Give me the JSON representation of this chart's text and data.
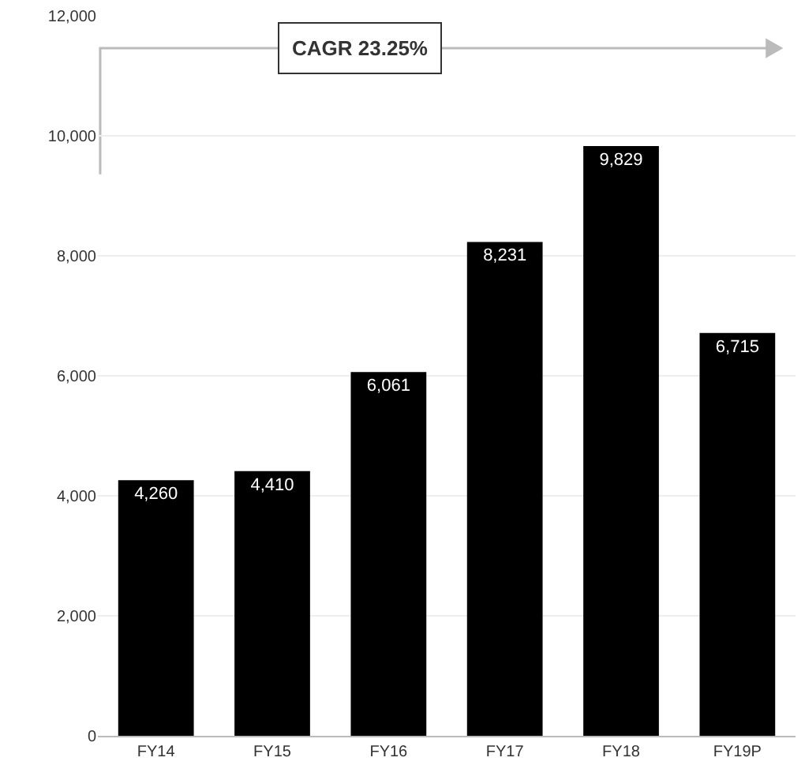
{
  "chart_data": {
    "type": "bar",
    "categories": [
      "FY14",
      "FY15",
      "FY16",
      "FY17",
      "FY18",
      "FY19P"
    ],
    "values": [
      4260,
      4410,
      6061,
      8231,
      9829,
      6715
    ],
    "value_labels": [
      "4,260",
      "4,410",
      "6,061",
      "8,231",
      "9,829",
      "6,715"
    ],
    "color": "#000000",
    "ylim": [
      0,
      12000
    ],
    "yticks": [
      {
        "value": 0,
        "label": "0"
      },
      {
        "value": 2000,
        "label": "2,000"
      },
      {
        "value": 4000,
        "label": "4,000"
      },
      {
        "value": 6000,
        "label": "6,000"
      },
      {
        "value": 8000,
        "label": "8,000"
      },
      {
        "value": 10000,
        "label": "10,000"
      },
      {
        "value": 12000,
        "label": "12,000"
      }
    ],
    "grid": "y",
    "annotations": [
      "CAGR 23.25%"
    ]
  }
}
